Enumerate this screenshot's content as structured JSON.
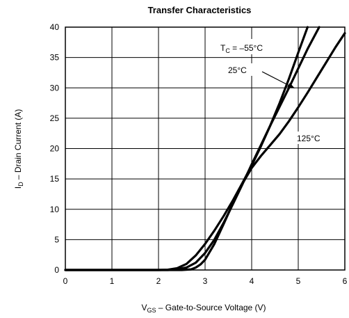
{
  "chart_data": {
    "type": "line",
    "title": "Transfer Characteristics",
    "xlabel": "V_GS – Gate-to-Source Voltage (V)",
    "xlabel_main": "V",
    "xlabel_sub": "GS",
    "xlabel_rest": " – Gate-to-Source Voltage (V)",
    "ylabel": "I_D – Drain Current (A)",
    "ylabel_main": "I",
    "ylabel_sub": "D",
    "ylabel_rest": " – Drain Current (A)",
    "xlim": [
      0,
      6
    ],
    "ylim": [
      0,
      40
    ],
    "xticks": [
      0,
      1,
      2,
      3,
      4,
      5,
      6
    ],
    "yticks": [
      0,
      5,
      10,
      15,
      20,
      25,
      30,
      35,
      40
    ],
    "grid": true,
    "series": [
      {
        "name": "TC = –55°C",
        "x": [
          0,
          2.0,
          2.2,
          2.4,
          2.6,
          2.8,
          3.0,
          3.2,
          3.4,
          3.6,
          3.8,
          4.0,
          4.2,
          4.4,
          4.6,
          4.8,
          5.0,
          5.2
        ],
        "y": [
          0,
          0,
          0.05,
          0.3,
          1.0,
          2.4,
          4.3,
          6.5,
          8.9,
          11.5,
          14.3,
          17.2,
          20.4,
          23.8,
          27.5,
          31.5,
          35.8,
          40.0
        ]
      },
      {
        "name": "25°C",
        "x": [
          0,
          2.2,
          2.4,
          2.6,
          2.8,
          3.0,
          3.2,
          3.4,
          3.6,
          3.8,
          4.0,
          4.2,
          4.4,
          4.6,
          4.8,
          5.0,
          5.2,
          5.45
        ],
        "y": [
          0,
          0,
          0.1,
          0.4,
          1.2,
          2.8,
          5.0,
          7.8,
          10.9,
          14.1,
          17.4,
          20.6,
          23.8,
          26.9,
          30.0,
          33.2,
          36.4,
          40.0
        ]
      },
      {
        "name": "125°C",
        "x": [
          0,
          2.5,
          2.7,
          2.8,
          2.9,
          3.0,
          3.2,
          3.4,
          3.6,
          3.8,
          4.0,
          4.2,
          4.4,
          4.6,
          4.8,
          5.0,
          5.2,
          5.4,
          5.6,
          5.8,
          6.0
        ],
        "y": [
          0,
          0,
          0.1,
          0.4,
          0.9,
          1.7,
          4.3,
          7.6,
          11.0,
          14.2,
          16.8,
          18.8,
          20.6,
          22.4,
          24.5,
          26.8,
          29.2,
          31.7,
          34.2,
          36.7,
          39.0
        ]
      }
    ],
    "annotations": [
      {
        "text_main": "T",
        "text_sub": "C",
        "text_rest": " = –55°C"
      },
      {
        "text": "25°C"
      },
      {
        "text": "125°C"
      }
    ]
  }
}
